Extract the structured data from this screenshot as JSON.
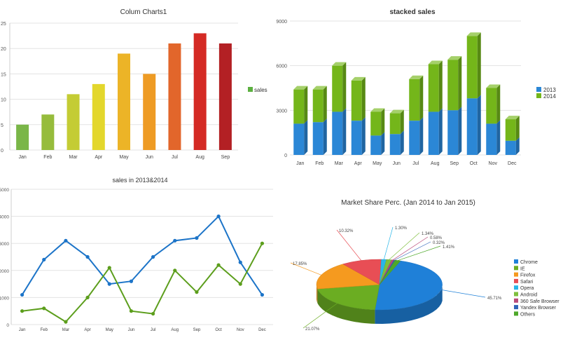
{
  "chart_data": [
    {
      "type": "bar",
      "title": "Colum Charts1",
      "categories": [
        "Jan",
        "Feb",
        "Mar",
        "Apr",
        "May",
        "Jun",
        "Jul",
        "Aug",
        "Sep"
      ],
      "series": [
        {
          "name": "sales",
          "values": [
            5,
            7,
            11,
            13,
            19,
            15,
            21,
            23,
            21
          ]
        }
      ],
      "yticks": [
        0,
        5,
        10,
        15,
        20,
        25
      ],
      "ylim": [
        0,
        25
      ],
      "legend": "right",
      "grid": true,
      "colors": [
        "#7ab648",
        "#96bc3c",
        "#c4cc34",
        "#e3d72c",
        "#ecb427",
        "#ee9b24",
        "#e2662b",
        "#d42a24",
        "#b32024"
      ],
      "legend_color": "#5cb040"
    },
    {
      "type": "bar",
      "stacked": true,
      "title": "stacked sales",
      "categories": [
        "Jan",
        "Feb",
        "Mar",
        "Apr",
        "May",
        "Jun",
        "Jul",
        "Aug",
        "Sep",
        "Oct",
        "Nov",
        "Dec"
      ],
      "series": [
        {
          "name": "2013",
          "values": [
            2100,
            2200,
            2900,
            2300,
            1300,
            1400,
            2300,
            2900,
            3000,
            3800,
            2100,
            950
          ],
          "color": "#2b87d6"
        },
        {
          "name": "2014",
          "values": [
            2300,
            2200,
            3100,
            2700,
            1600,
            1400,
            2800,
            3200,
            3400,
            4200,
            2400,
            1450
          ],
          "color": "#74b61a"
        }
      ],
      "yticks": [
        0,
        3000,
        6000,
        9000
      ],
      "ylim": [
        0,
        9000
      ],
      "legend": "right",
      "grid": true
    },
    {
      "type": "line",
      "title": "sales in 2013&2014",
      "categories": [
        "Jan",
        "Feb",
        "Mar",
        "Apr",
        "May",
        "Jun",
        "Jul",
        "Aug",
        "Sep",
        "Oct",
        "Nov",
        "Dec"
      ],
      "series": [
        {
          "name": "2013",
          "values": [
            1100,
            2400,
            3100,
            2500,
            1500,
            1600,
            2500,
            3100,
            3200,
            4000,
            2300,
            1100
          ],
          "color": "#1c74c8"
        },
        {
          "name": "2014",
          "values": [
            500,
            600,
            100,
            1000,
            2100,
            500,
            400,
            2000,
            1200,
            2200,
            1500,
            3000
          ],
          "color": "#5c9e1c"
        }
      ],
      "yticks": [
        0,
        1000,
        2000,
        3000,
        4000,
        5000
      ],
      "ylim": [
        0,
        5000
      ],
      "grid": true
    },
    {
      "type": "pie",
      "title": "Market Share Perc. (Jan 2014 to Jan 2015)",
      "slices": [
        {
          "label": "Chrome",
          "value": 45.71,
          "text": "45.71%",
          "color": "#1f80d8"
        },
        {
          "label": "IE",
          "value": 21.07,
          "text": "21.07%",
          "color": "#6bad22"
        },
        {
          "label": "Firefox",
          "value": 17.85,
          "text": "17.85%",
          "color": "#f59a1f"
        },
        {
          "label": "Safari",
          "value": 10.32,
          "text": "10.32%",
          "color": "#e84e55"
        },
        {
          "label": "Opera",
          "value": 1.3,
          "text": "1.30%",
          "color": "#29b6e8"
        },
        {
          "label": "Android",
          "value": 1.34,
          "text": "1.34%",
          "color": "#7fbf3d"
        },
        {
          "label": "360 Safe Browser",
          "value": 0.58,
          "text": "0.58%",
          "color": "#b94a7a"
        },
        {
          "label": "Yandex Browser",
          "value": 0.32,
          "text": "0.32%",
          "color": "#2f64b8"
        },
        {
          "label": "Others",
          "value": 1.41,
          "text": "1.41%",
          "color": "#4ea82a"
        }
      ],
      "legend": "right"
    }
  ]
}
